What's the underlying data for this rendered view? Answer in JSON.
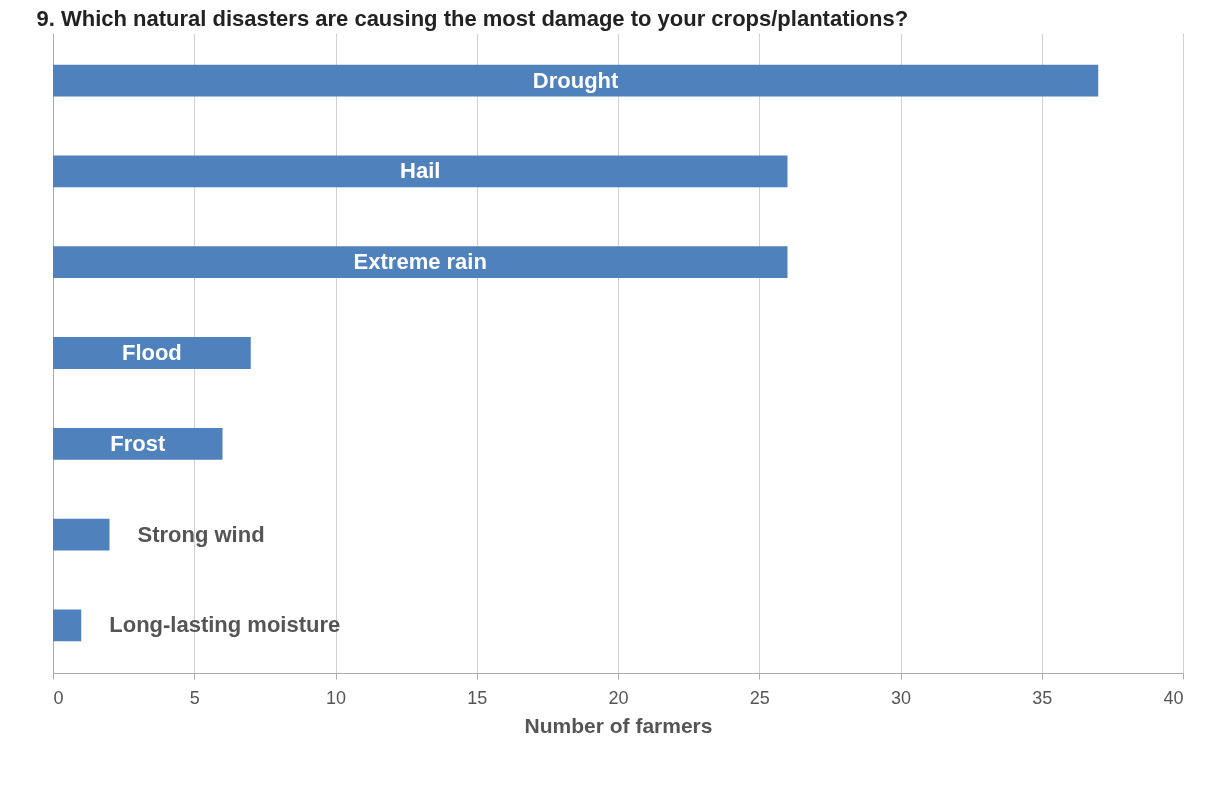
{
  "chart_data": {
    "type": "bar",
    "orientation": "horizontal",
    "title": "9. Which natural disasters are causing  the most damage to your crops/plantations?",
    "xlabel": "Number of farmers",
    "categories": [
      "Drought",
      "Hail",
      "Extreme rain",
      "Flood",
      "Frost",
      "Strong wind",
      "Long-lasting moisture"
    ],
    "values": [
      37,
      26,
      26,
      7,
      6,
      2,
      1
    ],
    "color": "#4f81bd",
    "xlim": [
      0,
      40
    ],
    "xticks": [
      0,
      5,
      10,
      15,
      20,
      25,
      30,
      35,
      40
    ],
    "grid": "x"
  }
}
